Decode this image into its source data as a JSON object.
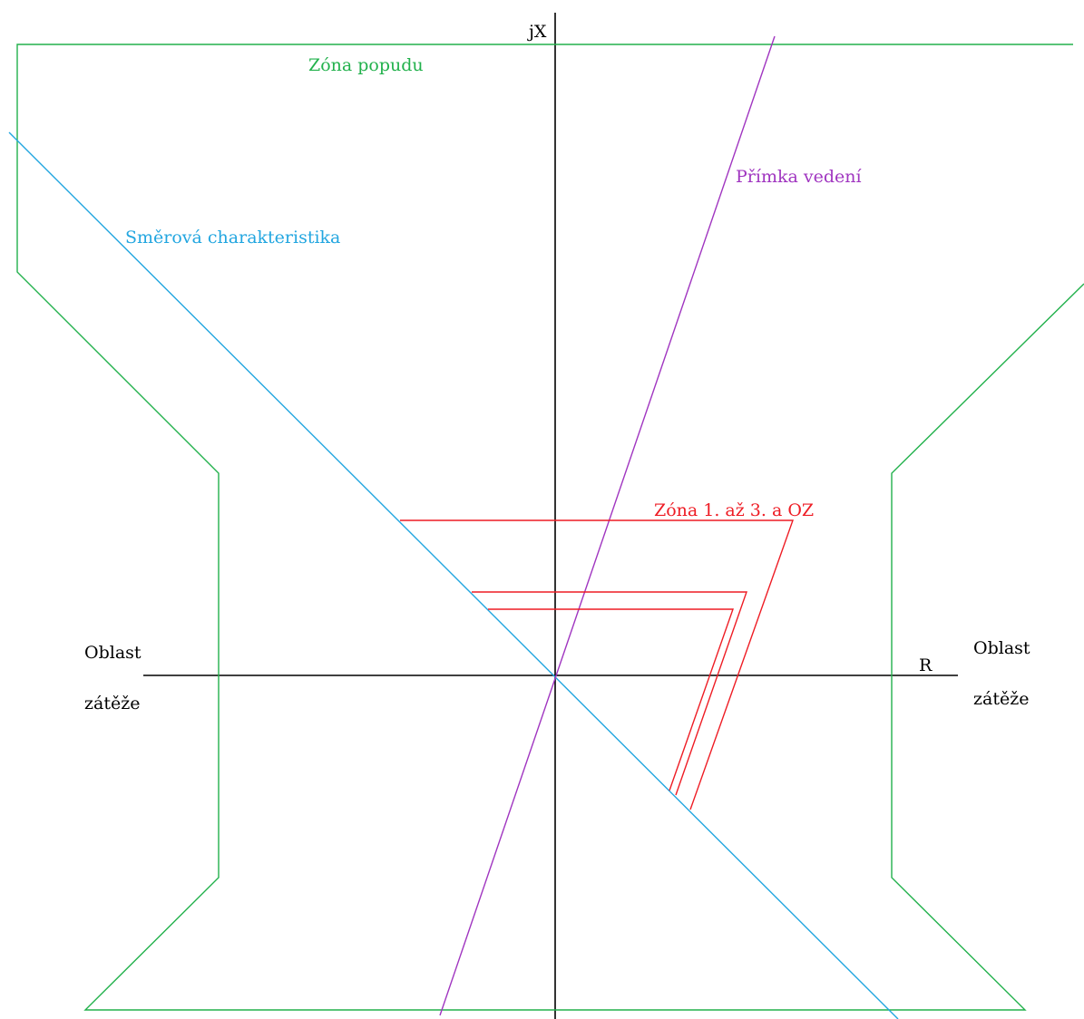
{
  "colors": {
    "axes": "#000000",
    "zona_popudu": "#22b14c",
    "smerova": "#22a6e0",
    "primka": "#a035c0",
    "zony": "#ee1c24",
    "text": "#000000"
  },
  "axes": {
    "x_label": "R",
    "y_label": "jX"
  },
  "labels": {
    "zona_popudu": "Zóna popudu",
    "smerova": "Směrová charakteristika",
    "primka": "Přímka vedení",
    "zony": "Zóna 1. až 3. a OZ",
    "oblast_left_1": "Oblast",
    "oblast_left_2": "zátěže",
    "oblast_right_1": "Oblast",
    "oblast_right_2": "zátěže"
  }
}
